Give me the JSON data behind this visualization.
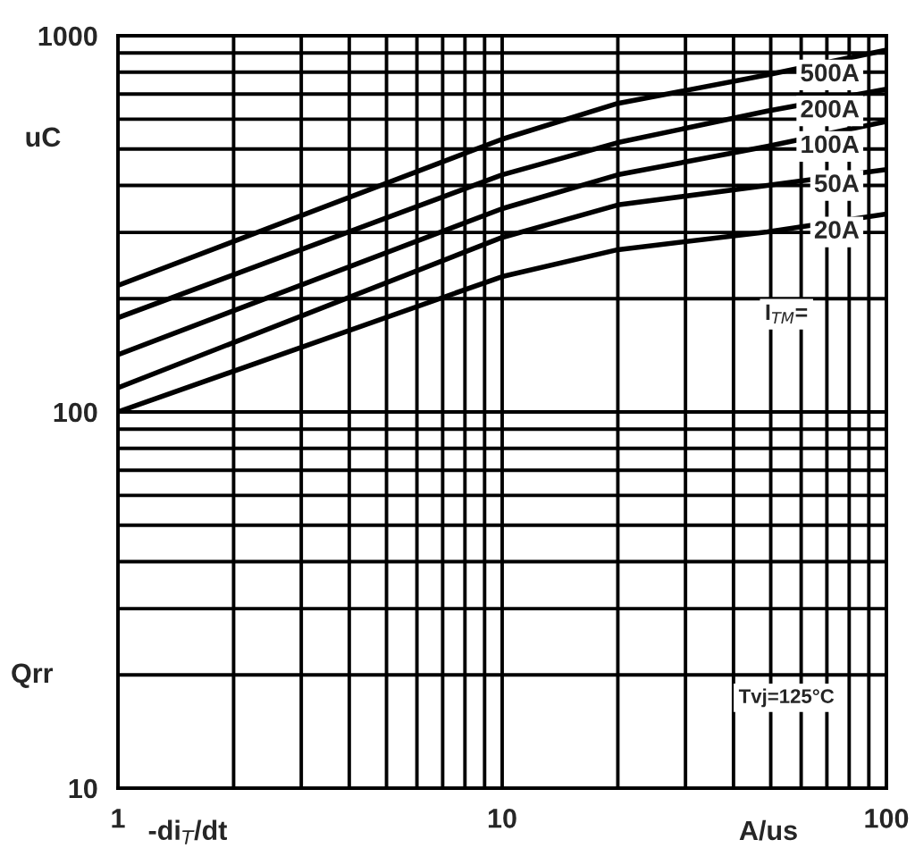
{
  "chart_data": {
    "type": "line",
    "xlabel": "-di$_{T}$/dt",
    "ylabel": "Qrr",
    "log": "xy",
    "grid": true,
    "legend": false,
    "marker": "none",
    "line_style": "solid",
    "xlim": [
      1,
      100
    ],
    "ylim": [
      10,
      1000
    ],
    "xticks": [
      1,
      {
        "value": 2,
        "label": null
      },
      {
        "value": 3,
        "label": null
      },
      {
        "value": 4,
        "label": null
      },
      {
        "value": 5,
        "label": null
      },
      {
        "value": 6,
        "label": null
      },
      {
        "value": 7,
        "label": null
      },
      {
        "value": 8,
        "label": null
      },
      {
        "value": 9,
        "label": null
      },
      10,
      {
        "value": 20,
        "label": null
      },
      {
        "value": 30,
        "label": null
      },
      {
        "value": 40,
        "label": null
      },
      {
        "value": 50,
        "label": null
      },
      {
        "value": 60,
        "label": null
      },
      {
        "value": 70,
        "label": null
      },
      {
        "value": 80,
        "label": null
      },
      {
        "value": 90,
        "label": null
      },
      100
    ],
    "yticks": [
      10,
      {
        "value": 20,
        "label": null
      },
      {
        "value": 30,
        "label": null
      },
      {
        "value": 40,
        "label": null
      },
      {
        "value": 50,
        "label": null
      },
      {
        "value": 60,
        "label": null
      },
      {
        "value": 70,
        "label": null
      },
      {
        "value": 80,
        "label": null
      },
      {
        "value": 90,
        "label": null
      },
      100,
      {
        "value": 200,
        "label": null
      },
      {
        "value": 300,
        "label": null
      },
      {
        "value": 400,
        "label": null
      },
      {
        "value": 500,
        "label": null
      },
      {
        "value": 600,
        "label": null
      },
      {
        "value": 700,
        "label": null
      },
      {
        "value": 800,
        "label": null
      },
      {
        "value": 900,
        "label": null
      },
      1000
    ],
    "x": [
      1,
      10,
      20,
      49,
      100
    ],
    "series": [
      {
        "name": "500A",
        "color": "#000000",
        "values": [
          217,
          531,
          661,
          787,
          916
        ]
      },
      {
        "name": "200A",
        "color": "#000000",
        "values": [
          178,
          427,
          520,
          631,
          721
        ]
      },
      {
        "name": "100A",
        "color": "#000000",
        "values": [
          142,
          347,
          427,
          508,
          592
        ]
      },
      {
        "name": "50A",
        "color": "#000000",
        "values": [
          116,
          291,
          355,
          400,
          441
        ]
      },
      {
        "name": "20A",
        "color": "#000000",
        "values": [
          100,
          229,
          270,
          301,
          336
        ]
      }
    ],
    "annotations": [
      "uC",
      "A/us",
      "I$_{TM}$=",
      "Tvj=125°C"
    ]
  }
}
